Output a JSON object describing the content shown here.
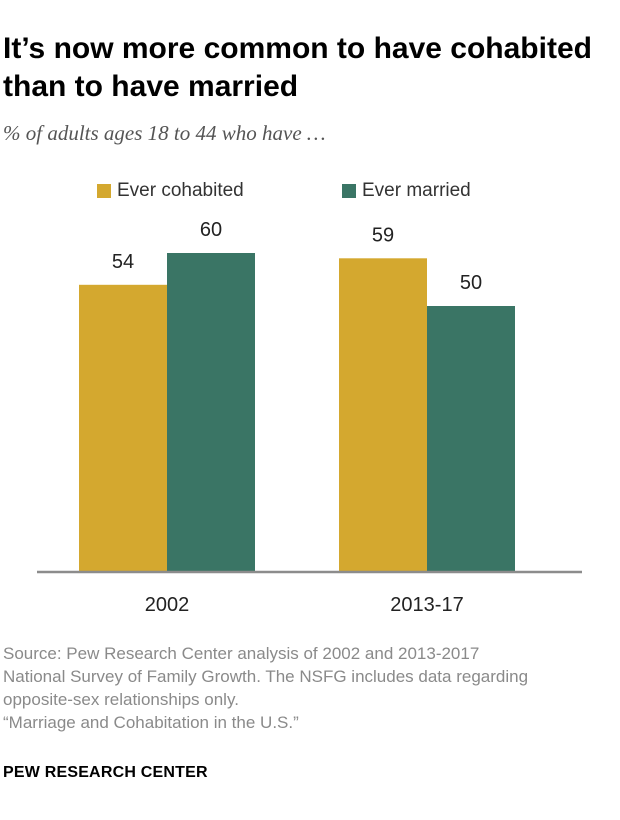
{
  "title": "It’s now more common to have cohabited than to have married",
  "subtitle": "% of adults ages 18 to 44 who have …",
  "legend": [
    {
      "label": "Ever cohabited",
      "color": "#D4A82F"
    },
    {
      "label": "Ever married",
      "color": "#3A7565"
    }
  ],
  "chart_data": {
    "type": "bar",
    "categories": [
      "2002",
      "2013-17"
    ],
    "series": [
      {
        "name": "Ever cohabited",
        "values": [
          54,
          59
        ],
        "color": "#D4A82F"
      },
      {
        "name": "Ever married",
        "values": [
          60,
          50
        ],
        "color": "#3A7565"
      }
    ],
    "ylim": [
      0,
      100
    ],
    "legend_position": "top",
    "grid": false
  },
  "footer": {
    "source_lines": [
      "Source: Pew Research Center analysis of 2002 and 2013-2017",
      "National Survey of Family Growth. The NSFG includes data regarding",
      "opposite-sex relationships only.",
      "“Marriage and Cohabitation in the U.S.”"
    ],
    "organization": "PEW RESEARCH CENTER"
  }
}
